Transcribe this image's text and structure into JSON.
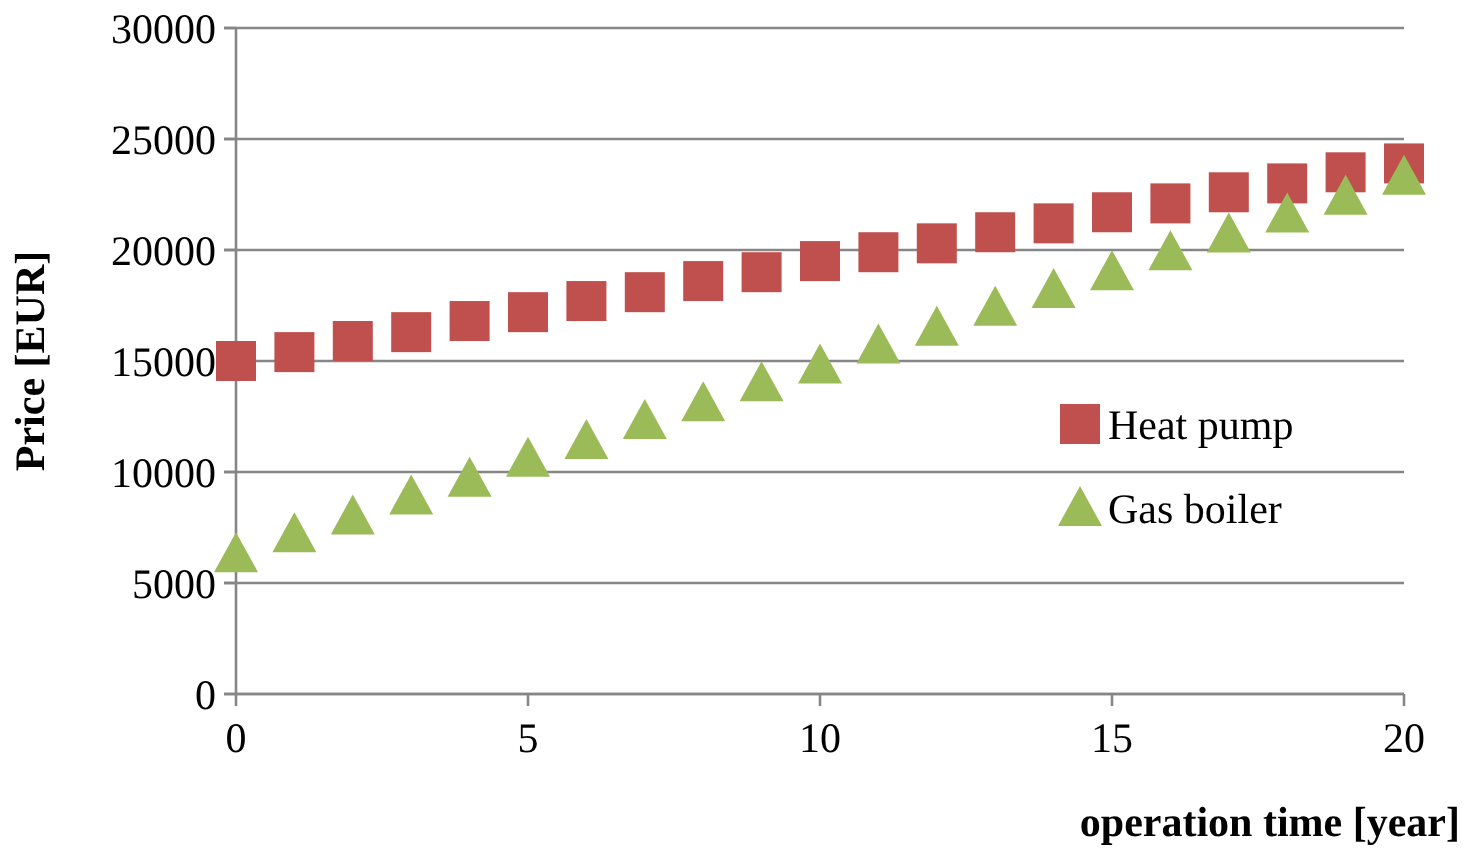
{
  "chart_data": {
    "type": "scatter",
    "xlabel": "operation time [year]",
    "ylabel": "Price [EUR]",
    "x": [
      0,
      1,
      2,
      3,
      4,
      5,
      6,
      7,
      8,
      9,
      10,
      11,
      12,
      13,
      14,
      15,
      16,
      17,
      18,
      19,
      20
    ],
    "series": [
      {
        "name": "Heat pump",
        "color": "#c0504d",
        "marker": "square",
        "values": [
          15000,
          15400,
          15900,
          16300,
          16800,
          17200,
          17700,
          18100,
          18600,
          19000,
          19500,
          19900,
          20300,
          20800,
          21200,
          21700,
          22100,
          22600,
          23000,
          23500,
          23900
        ]
      },
      {
        "name": "Gas boiler",
        "color": "#9bbb59",
        "marker": "triangle",
        "values": [
          6300,
          7200,
          8000,
          8900,
          9700,
          10600,
          11400,
          12300,
          13100,
          14000,
          14800,
          15700,
          16500,
          17400,
          18200,
          19000,
          19900,
          20700,
          21600,
          22400,
          23300
        ]
      }
    ],
    "xlim": [
      0,
      20
    ],
    "xticks": [
      0,
      5,
      10,
      15,
      20
    ],
    "ylim": [
      0,
      30000
    ],
    "yticks": [
      0,
      5000,
      10000,
      15000,
      20000,
      25000,
      30000
    ],
    "grid": "y",
    "legend": "right"
  }
}
